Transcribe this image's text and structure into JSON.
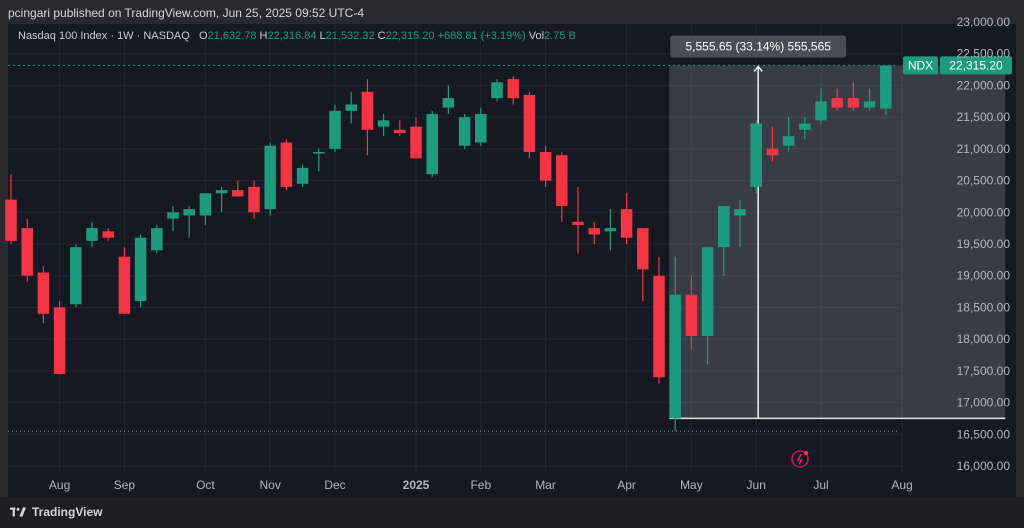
{
  "publisher_line": "pcingari published on TradingView.com, Jun 25, 2025 09:52 UTC-4",
  "legend": {
    "title": "Nasdaq 100 Index · 1W · NASDAQ",
    "o_label": "O",
    "o_value": "21,632.78",
    "h_label": "H",
    "h_value": "22,316.84",
    "l_label": "L",
    "l_value": "21,532.32",
    "c_label": "C",
    "c_value": "22,315.20",
    "change": "+688.81 (+3.19%)",
    "vol_label": "Vol",
    "vol_value": "2.75 B"
  },
  "price_tag": {
    "symbol": "NDX",
    "value": "22,315.20"
  },
  "measure_label": "5,555.65 (33.14%) 555,565",
  "footer_brand": "TradingView",
  "colors": {
    "up": "#1e9b7e",
    "down": "#f23645",
    "bg": "#161922",
    "grid": "#232632",
    "axis_text": "#b2b5be"
  },
  "chart_data": {
    "type": "candlestick",
    "title": "Nasdaq 100 Index",
    "interval": "1W",
    "exchange": "NASDAQ",
    "ylim": [
      16000,
      23000
    ],
    "y_ticks": [
      "16,000.00",
      "16,500.00",
      "17,000.00",
      "17,500.00",
      "18,000.00",
      "18,500.00",
      "19,000.00",
      "19,500.00",
      "20,000.00",
      "20,500.00",
      "21,000.00",
      "21,500.00",
      "22,000.00",
      "22,500.00",
      "23,000.00"
    ],
    "y_tick_values": [
      16000,
      16500,
      17000,
      17500,
      18000,
      18500,
      19000,
      19500,
      20000,
      20500,
      21000,
      21500,
      22000,
      22500,
      23000
    ],
    "x_ticks": [
      {
        "label": "Aug",
        "index": 3
      },
      {
        "label": "Sep",
        "index": 7
      },
      {
        "label": "Oct",
        "index": 12
      },
      {
        "label": "Nov",
        "index": 16
      },
      {
        "label": "Dec",
        "index": 20
      },
      {
        "label": "2025",
        "index": 25
      },
      {
        "label": "Feb",
        "index": 29
      },
      {
        "label": "Mar",
        "index": 33
      },
      {
        "label": "Apr",
        "index": 38
      },
      {
        "label": "May",
        "index": 42
      },
      {
        "label": "Jun",
        "index": 46
      },
      {
        "label": "Jul",
        "index": 50
      },
      {
        "label": "Aug",
        "index": 55
      }
    ],
    "candles": [
      {
        "o": 20200,
        "h": 20600,
        "l": 19500,
        "c": 19550
      },
      {
        "o": 19750,
        "h": 19900,
        "l": 18900,
        "c": 19000
      },
      {
        "o": 19050,
        "h": 19150,
        "l": 18250,
        "c": 18400
      },
      {
        "o": 18500,
        "h": 18600,
        "l": 17450,
        "c": 17450
      },
      {
        "o": 18550,
        "h": 19500,
        "l": 18500,
        "c": 19450
      },
      {
        "o": 19550,
        "h": 19850,
        "l": 19450,
        "c": 19750
      },
      {
        "o": 19700,
        "h": 19750,
        "l": 19550,
        "c": 19600
      },
      {
        "o": 19300,
        "h": 19450,
        "l": 18400,
        "c": 18400
      },
      {
        "o": 18600,
        "h": 19650,
        "l": 18500,
        "c": 19600
      },
      {
        "o": 19400,
        "h": 19800,
        "l": 19350,
        "c": 19750
      },
      {
        "o": 19900,
        "h": 20100,
        "l": 19700,
        "c": 20000
      },
      {
        "o": 19950,
        "h": 20100,
        "l": 19600,
        "c": 20050
      },
      {
        "o": 19950,
        "h": 20300,
        "l": 19800,
        "c": 20300
      },
      {
        "o": 20300,
        "h": 20400,
        "l": 20000,
        "c": 20350
      },
      {
        "o": 20350,
        "h": 20500,
        "l": 20250,
        "c": 20250
      },
      {
        "o": 20400,
        "h": 20500,
        "l": 19900,
        "c": 20000
      },
      {
        "o": 20050,
        "h": 21100,
        "l": 19950,
        "c": 21050
      },
      {
        "o": 21100,
        "h": 21150,
        "l": 20350,
        "c": 20400
      },
      {
        "o": 20450,
        "h": 20750,
        "l": 20400,
        "c": 20700
      },
      {
        "o": 20950,
        "h": 21000,
        "l": 20650,
        "c": 20950
      },
      {
        "o": 21000,
        "h": 21700,
        "l": 20950,
        "c": 21600
      },
      {
        "o": 21600,
        "h": 21900,
        "l": 21400,
        "c": 21700
      },
      {
        "o": 21900,
        "h": 22100,
        "l": 20900,
        "c": 21300
      },
      {
        "o": 21350,
        "h": 21550,
        "l": 21200,
        "c": 21450
      },
      {
        "o": 21300,
        "h": 21450,
        "l": 21200,
        "c": 21250
      },
      {
        "o": 21350,
        "h": 21500,
        "l": 20900,
        "c": 20850
      },
      {
        "o": 20600,
        "h": 21600,
        "l": 20550,
        "c": 21550
      },
      {
        "o": 21650,
        "h": 22000,
        "l": 21550,
        "c": 21800
      },
      {
        "o": 21050,
        "h": 21550,
        "l": 21000,
        "c": 21500
      },
      {
        "o": 21100,
        "h": 21650,
        "l": 21050,
        "c": 21550
      },
      {
        "o": 21800,
        "h": 22100,
        "l": 21750,
        "c": 22050
      },
      {
        "o": 22100,
        "h": 22150,
        "l": 21700,
        "c": 21800
      },
      {
        "o": 21850,
        "h": 21900,
        "l": 20850,
        "c": 20950
      },
      {
        "o": 20950,
        "h": 21050,
        "l": 20400,
        "c": 20500
      },
      {
        "o": 20900,
        "h": 20950,
        "l": 19850,
        "c": 20100
      },
      {
        "o": 19850,
        "h": 20400,
        "l": 19350,
        "c": 19800
      },
      {
        "o": 19750,
        "h": 19850,
        "l": 19500,
        "c": 19650
      },
      {
        "o": 19700,
        "h": 20050,
        "l": 19400,
        "c": 19750
      },
      {
        "o": 20050,
        "h": 20300,
        "l": 19500,
        "c": 19600
      },
      {
        "o": 19750,
        "h": 19750,
        "l": 18600,
        "c": 19100
      },
      {
        "o": 19000,
        "h": 19300,
        "l": 17300,
        "c": 17400
      },
      {
        "o": 16750,
        "h": 19300,
        "l": 16550,
        "c": 18700
      },
      {
        "o": 18700,
        "h": 19000,
        "l": 17850,
        "c": 18050
      },
      {
        "o": 18050,
        "h": 19450,
        "l": 17600,
        "c": 19450
      },
      {
        "o": 19450,
        "h": 20100,
        "l": 19000,
        "c": 20100
      },
      {
        "o": 19950,
        "h": 20200,
        "l": 19450,
        "c": 20050
      },
      {
        "o": 20400,
        "h": 21450,
        "l": 20300,
        "c": 21400
      },
      {
        "o": 21000,
        "h": 21350,
        "l": 20800,
        "c": 20900
      },
      {
        "o": 21050,
        "h": 21500,
        "l": 20950,
        "c": 21200
      },
      {
        "o": 21300,
        "h": 21500,
        "l": 21150,
        "c": 21400
      },
      {
        "o": 21450,
        "h": 21950,
        "l": 21400,
        "c": 21750
      },
      {
        "o": 21800,
        "h": 21950,
        "l": 21600,
        "c": 21650
      },
      {
        "o": 21800,
        "h": 22050,
        "l": 21600,
        "c": 21650
      },
      {
        "o": 21650,
        "h": 21950,
        "l": 21600,
        "c": 21750
      },
      {
        "o": 21633,
        "h": 22317,
        "l": 21532,
        "c": 22315
      }
    ],
    "measure": {
      "from_index": 41,
      "to_index": 61,
      "low": 16750,
      "high": 22315
    },
    "last_price": 22315.2,
    "prior_low_line": 16550
  }
}
